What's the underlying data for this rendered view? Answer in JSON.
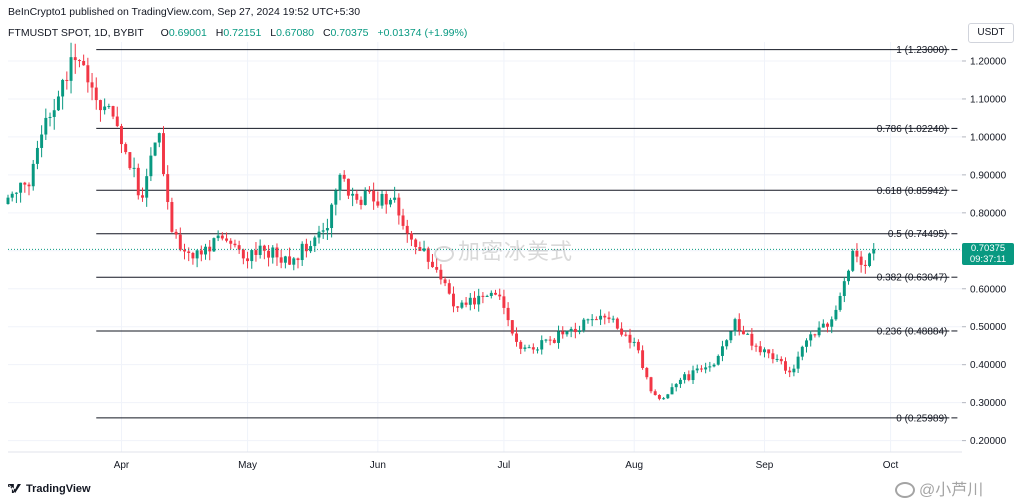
{
  "header": {
    "publisher": "BeInCrypto1 published on TradingView.com, Sep 27, 2024 19:52 UTC+5:30",
    "symbol": "FTMUSDT SPOT, 1D, BYBIT",
    "open_label": "O",
    "open": "0.69001",
    "high_label": "H",
    "high": "0.72151",
    "low_label": "L",
    "low": "0.67080",
    "close_label": "C",
    "close": "0.70375",
    "change": "+0.01374 (+1.99%)"
  },
  "currency_badge": "USDT",
  "brand": "TradingView",
  "watermark_center": "加密冰美式",
  "watermark_corner": "@小芦川",
  "last_price": {
    "price": "0.70375",
    "countdown": "09:37:11"
  },
  "colors": {
    "up": "#089981",
    "down": "#f23645",
    "fib_line": "#131722",
    "grid": "#f0f3fa",
    "axis_text": "#131722"
  },
  "chart_data": {
    "type": "candlestick",
    "title": "",
    "x_tick_labels": [
      {
        "label": "Apr",
        "date": "2024-04-01"
      },
      {
        "label": "May",
        "date": "2024-05-01"
      },
      {
        "label": "Jun",
        "date": "2024-06-01"
      },
      {
        "label": "Jul",
        "date": "2024-07-01"
      },
      {
        "label": "Aug",
        "date": "2024-08-01"
      },
      {
        "label": "Sep",
        "date": "2024-09-01"
      },
      {
        "label": "Oct",
        "date": "2024-10-01"
      }
    ],
    "x_range": [
      "2024-03-05",
      "2024-10-18"
    ],
    "y_range": [
      0.17,
      1.25
    ],
    "y_tick_labels": [
      "0.20000",
      "0.30000",
      "0.40000",
      "0.50000",
      "0.60000",
      "0.70000",
      "0.80000",
      "0.90000",
      "1.00000",
      "1.10000",
      "1.20000"
    ],
    "y_ticks": [
      0.2,
      0.3,
      0.4,
      0.5,
      0.6,
      0.7,
      0.8,
      0.9,
      1.0,
      1.1,
      1.2
    ],
    "last_price": 0.70375,
    "fib_levels": [
      {
        "ratio": 1,
        "price": 1.23,
        "label": "1 (1.23000)",
        "start": "2024-03-26"
      },
      {
        "ratio": 0.786,
        "price": 1.0224,
        "label": "0.786 (1.02240)",
        "start": "2024-03-26"
      },
      {
        "ratio": 0.618,
        "price": 0.85942,
        "label": "0.618 (0.85942)",
        "start": "2024-03-26"
      },
      {
        "ratio": 0.5,
        "price": 0.74495,
        "label": "0.5 (0.74495)",
        "start": "2024-03-26"
      },
      {
        "ratio": 0.382,
        "price": 0.63047,
        "label": "0.382 (0.63047)",
        "start": "2024-03-26"
      },
      {
        "ratio": 0.236,
        "price": 0.48884,
        "label": "0.236 (0.48884)",
        "start": "2024-03-26"
      },
      {
        "ratio": 0,
        "price": 0.25989,
        "label": "0 (0.25989)",
        "start": "2024-03-26"
      }
    ],
    "fib_end": "2024-10-15",
    "anchor_points": [
      {
        "date": "2024-03-05",
        "close": 0.84
      },
      {
        "date": "2024-03-10",
        "close": 0.87
      },
      {
        "date": "2024-03-14",
        "close": 1.05
      },
      {
        "date": "2024-03-18",
        "close": 1.15
      },
      {
        "date": "2024-03-22",
        "close": 1.2
      },
      {
        "date": "2024-03-25",
        "close": 1.13
      },
      {
        "date": "2024-03-28",
        "close": 1.08
      },
      {
        "date": "2024-04-02",
        "close": 0.96
      },
      {
        "date": "2024-04-06",
        "close": 0.84
      },
      {
        "date": "2024-04-10",
        "close": 1.01
      },
      {
        "date": "2024-04-13",
        "close": 0.75
      },
      {
        "date": "2024-04-18",
        "close": 0.68
      },
      {
        "date": "2024-04-24",
        "close": 0.74
      },
      {
        "date": "2024-04-30",
        "close": 0.68
      },
      {
        "date": "2024-05-05",
        "close": 0.7
      },
      {
        "date": "2024-05-12",
        "close": 0.68
      },
      {
        "date": "2024-05-20",
        "close": 0.76
      },
      {
        "date": "2024-05-23",
        "close": 0.9
      },
      {
        "date": "2024-05-26",
        "close": 0.85
      },
      {
        "date": "2024-05-31",
        "close": 0.83
      },
      {
        "date": "2024-06-05",
        "close": 0.84
      },
      {
        "date": "2024-06-10",
        "close": 0.71
      },
      {
        "date": "2024-06-15",
        "close": 0.65
      },
      {
        "date": "2024-06-20",
        "close": 0.55
      },
      {
        "date": "2024-06-26",
        "close": 0.58
      },
      {
        "date": "2024-06-30",
        "close": 0.58
      },
      {
        "date": "2024-07-04",
        "close": 0.46
      },
      {
        "date": "2024-07-08",
        "close": 0.44
      },
      {
        "date": "2024-07-15",
        "close": 0.48
      },
      {
        "date": "2024-07-22",
        "close": 0.52
      },
      {
        "date": "2024-07-26",
        "close": 0.52
      },
      {
        "date": "2024-08-01",
        "close": 0.46
      },
      {
        "date": "2024-08-05",
        "close": 0.33
      },
      {
        "date": "2024-08-07",
        "close": 0.31
      },
      {
        "date": "2024-08-12",
        "close": 0.36
      },
      {
        "date": "2024-08-20",
        "close": 0.4
      },
      {
        "date": "2024-08-25",
        "close": 0.52
      },
      {
        "date": "2024-08-29",
        "close": 0.45
      },
      {
        "date": "2024-09-02",
        "close": 0.43
      },
      {
        "date": "2024-09-07",
        "close": 0.38
      },
      {
        "date": "2024-09-12",
        "close": 0.48
      },
      {
        "date": "2024-09-16",
        "close": 0.5
      },
      {
        "date": "2024-09-20",
        "close": 0.62
      },
      {
        "date": "2024-09-22",
        "close": 0.7
      },
      {
        "date": "2024-09-25",
        "close": 0.66
      },
      {
        "date": "2024-09-27",
        "close": 0.70375
      }
    ]
  }
}
